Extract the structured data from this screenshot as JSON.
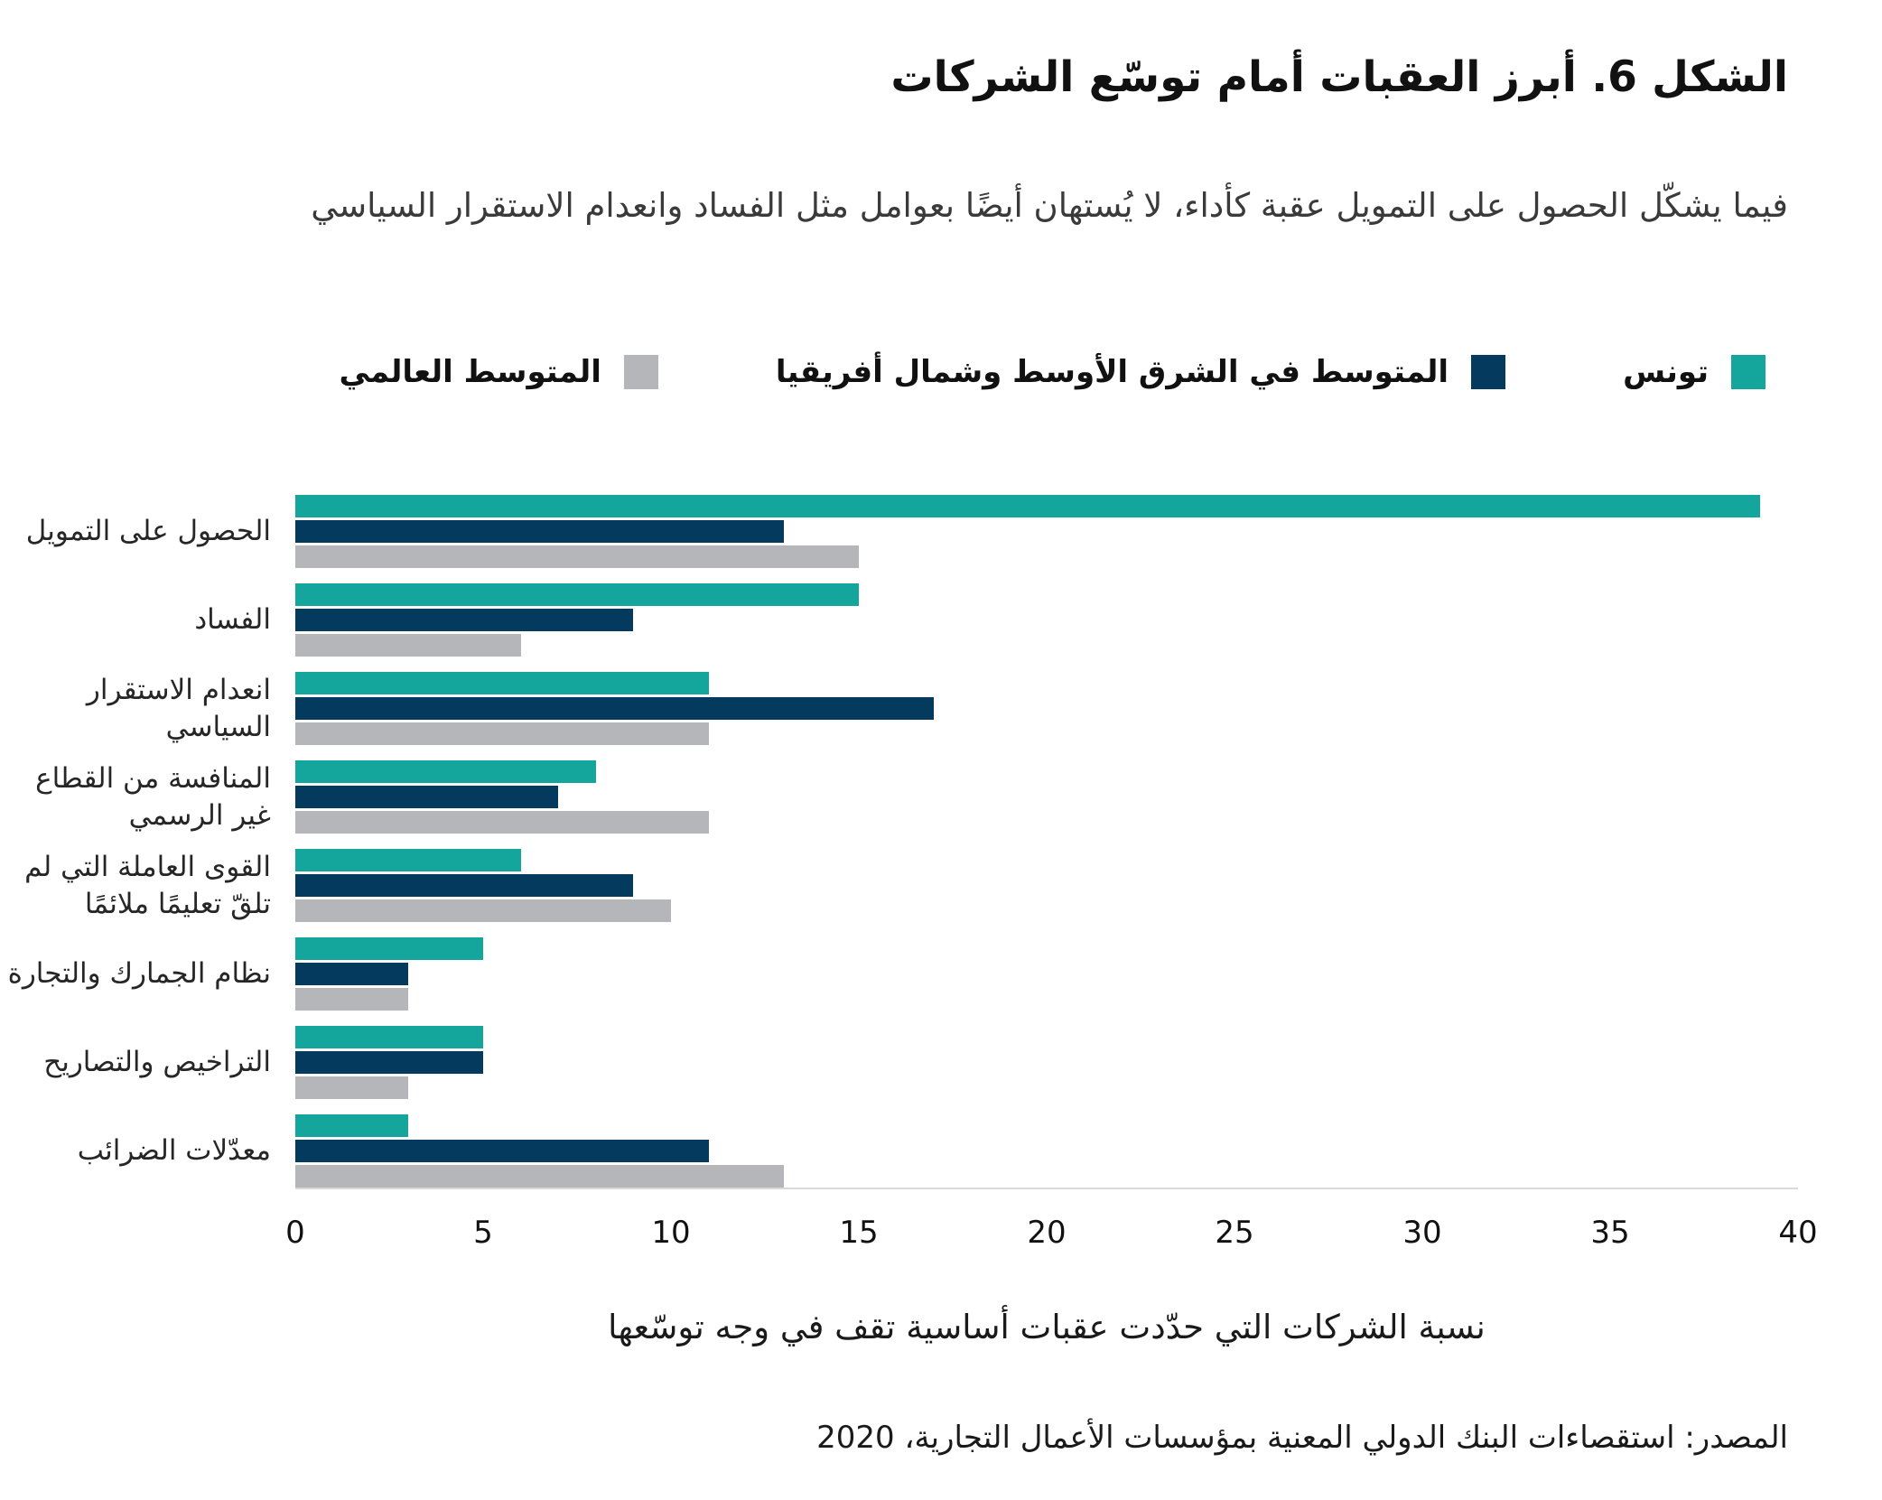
{
  "title": "الشكل 6. أبرز العقبات أمام توسّع الشركات",
  "subtitle": "فيما يشكّل الحصول على التمويل عقبة كأداء، لا يُستهان أيضًا بعوامل مثل الفساد وانعدام الاستقرار السياسي",
  "legend": [
    {
      "label": "تونس",
      "color": "#14A59D"
    },
    {
      "label": "المتوسط في الشرق الأوسط وشمال أفريقيا",
      "color": "#043A5E"
    },
    {
      "label": "المتوسط العالمي",
      "color": "#B4B6BA"
    }
  ],
  "xlabel": "نسبة الشركات التي حدّدت عقبات أساسية تقف في وجه توسّعها",
  "source": "المصدر: استقصاءات البنك الدولي المعنية بمؤسسات الأعمال التجارية، 2020",
  "colors": {
    "tunisia": "#14A59D",
    "mena_average": "#043A5E",
    "global_average": "#B4B6BA",
    "axis_line": "#D9D9D9"
  },
  "chart_data": {
    "type": "bar",
    "orientation": "horizontal",
    "title": "الشكل 6. أبرز العقبات أمام توسّع الشركات",
    "xlabel": "نسبة الشركات التي حدّدت عقبات أساسية تقف في وجه توسّعها",
    "categories": [
      "الحصول على التمويل",
      "الفساد",
      "انعدام الاستقرار السياسي",
      "المنافسة من القطاع غير الرسمي",
      "القوى العاملة التي لم تلقّ تعليمًا ملائمًا",
      "نظام الجمارك والتجارة",
      "التراخيص والتصاريح",
      "معدّلات الضرائب"
    ],
    "series": [
      {
        "name": "تونس",
        "color": "#14A59D",
        "values": [
          39,
          15,
          11,
          8,
          6,
          5,
          5,
          3
        ]
      },
      {
        "name": "المتوسط في الشرق الأوسط وشمال أفريقيا",
        "color": "#043A5E",
        "values": [
          13,
          9,
          17,
          7,
          9,
          3,
          5,
          11
        ]
      },
      {
        "name": "المتوسط العالمي",
        "color": "#B4B6BA",
        "values": [
          15,
          6,
          11,
          11,
          10,
          3,
          3,
          13
        ]
      }
    ],
    "xlim": [
      0,
      40
    ],
    "xticks": [
      0,
      5,
      10,
      15,
      20,
      25,
      30,
      35,
      40
    ],
    "grid": false,
    "legend_position": "top"
  }
}
